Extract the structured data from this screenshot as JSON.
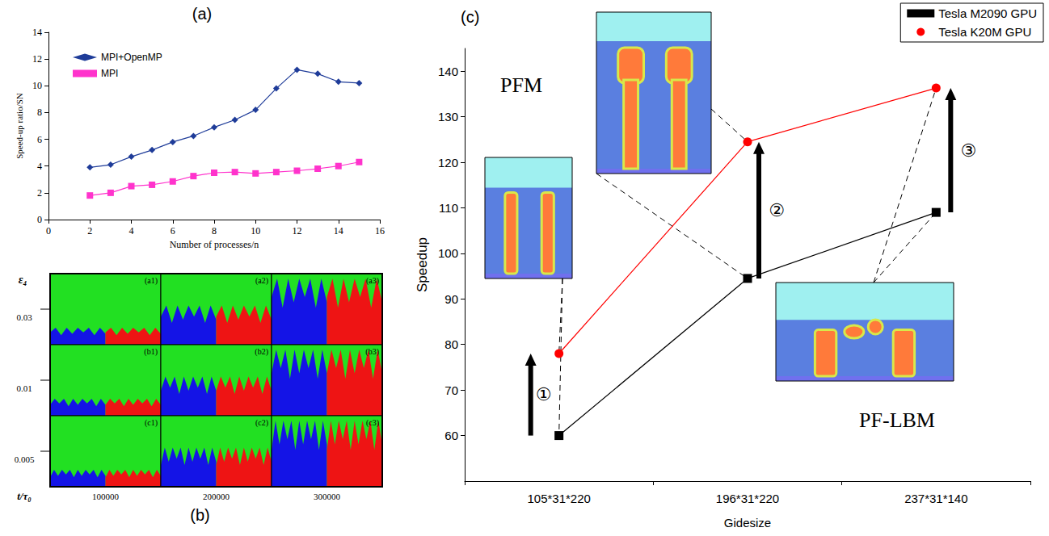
{
  "chart_data": [
    {
      "type": "line",
      "title": "(a)",
      "x_label": "Number of processes/n",
      "y_label": "Speed-up ratio/SN",
      "x": [
        2,
        3,
        4,
        5,
        6,
        7,
        8,
        9,
        10,
        11,
        12,
        13,
        14,
        15
      ],
      "series": [
        {
          "name": "MPI+OpenMP",
          "color": "#1f3c99",
          "marker": "diamond",
          "values": [
            3.9,
            4.1,
            4.7,
            5.2,
            5.8,
            6.25,
            6.9,
            7.45,
            8.2,
            9.8,
            11.2,
            10.9,
            10.3,
            10.2
          ]
        },
        {
          "name": "MPI",
          "color": "#ff33cc",
          "marker": "square",
          "values": [
            1.8,
            2.0,
            2.5,
            2.6,
            2.85,
            3.25,
            3.5,
            3.55,
            3.45,
            3.55,
            3.65,
            3.8,
            4.0,
            4.3
          ]
        }
      ],
      "xlim": [
        0,
        16
      ],
      "xticks": [
        0,
        2,
        4,
        6,
        8,
        10,
        12,
        14,
        16
      ],
      "ylim": [
        0,
        14
      ],
      "yticks": [
        0,
        2,
        4,
        6,
        8,
        10,
        12,
        14
      ],
      "grid": false,
      "legend": "upper left"
    },
    {
      "type": "line",
      "title": "(c)",
      "x_label": "Gidesize",
      "y_label": "Speedup",
      "categories": [
        "105*31*220",
        "196*31*220",
        "237*31*140"
      ],
      "series": [
        {
          "name": "Tesla M2090 GPU",
          "color": "#000000",
          "marker": "square",
          "values": [
            60,
            94.5,
            109
          ]
        },
        {
          "name": "Tesla K20M GPU",
          "color": "#ff0000",
          "marker": "circle",
          "values": [
            78,
            124.5,
            136.3
          ]
        }
      ],
      "ylim": [
        50,
        145
      ],
      "yticks": [
        60,
        70,
        80,
        90,
        100,
        110,
        120,
        130,
        140
      ],
      "grid": false,
      "legend": "upper right",
      "annotations": [
        "PFM",
        "PF-LBM",
        "①",
        "②",
        "③"
      ]
    }
  ],
  "image_grid": {
    "title": "(b)",
    "y_label": "ε₄",
    "x_label": "t/τ₀",
    "rows": [
      0.03,
      0.01,
      0.005
    ],
    "columns": [
      100000,
      200000,
      300000
    ],
    "cells": [
      [
        "(a1)",
        "(a2)",
        "(a3)"
      ],
      [
        "(b1)",
        "(b2)",
        "(b3)"
      ],
      [
        "(c1)",
        "(c2)",
        "(c3)"
      ]
    ]
  }
}
